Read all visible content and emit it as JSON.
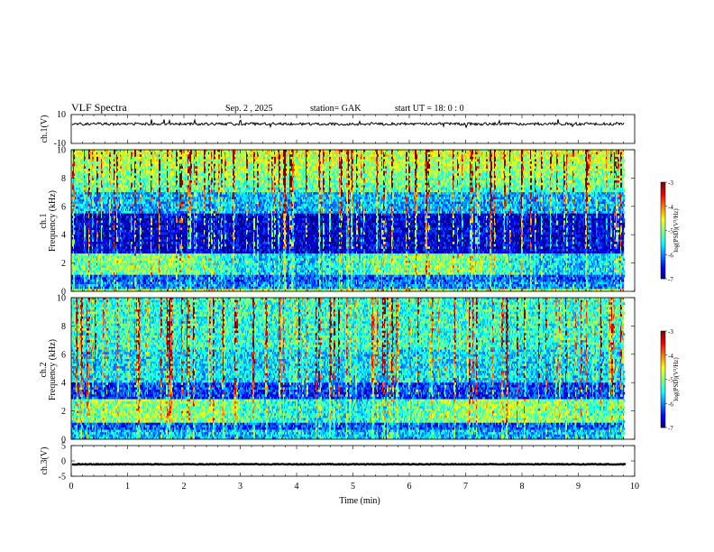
{
  "header": {
    "title": "VLF Spectra",
    "date": "Sep. 2 , 2025",
    "station": "station= GAK",
    "start": "start UT = 18: 0 : 0"
  },
  "chart_data": [
    {
      "type": "line",
      "panel": "ch1-waveform",
      "ylabel": "ch.1(V)",
      "ylim": [
        -10,
        10
      ],
      "ytick_labels": [
        "10",
        "-10"
      ],
      "xlim": [
        0,
        10
      ],
      "signal_level": 3.5
    },
    {
      "type": "heatmap",
      "panel": "ch1-spectrogram",
      "ylabel": "ch.1\nFrequency (kHz)",
      "ylabel_line1": "ch.1",
      "ylabel_line2": "Frequency (kHz)",
      "ylim": [
        0,
        10
      ],
      "ytick_labels": [
        "0",
        "2",
        "4",
        "6",
        "8",
        "10"
      ],
      "xlim": [
        0,
        9.8
      ],
      "colorbar": {
        "label": "log(PSD)(V²/Hz)",
        "range": [
          -7,
          -3
        ],
        "tick_labels": [
          "-3",
          "-4",
          "-5",
          "-6",
          "-7"
        ]
      }
    },
    {
      "type": "heatmap",
      "panel": "ch2-spectrogram",
      "ylabel": "ch.2\nFrequency (kHz)",
      "ylabel_line1": "ch.2",
      "ylabel_line2": "Frequency (kHz)",
      "ylim": [
        0,
        10
      ],
      "ytick_labels": [
        "0",
        "2",
        "4",
        "6",
        "8",
        "10"
      ],
      "xlim": [
        0,
        9.8
      ],
      "colorbar": {
        "label": "log(PSD)(V²/Hz)",
        "range": [
          -7,
          -3
        ],
        "tick_labels": [
          "-3",
          "-4",
          "-5",
          "-6",
          "-7"
        ]
      }
    },
    {
      "type": "line",
      "panel": "ch3-waveform",
      "ylabel": "ch.3(V)",
      "ylim": [
        -5,
        5
      ],
      "ytick_labels": [
        "5",
        "0",
        "-5"
      ],
      "xlim": [
        0,
        10
      ],
      "signal_level": -1.1,
      "xlabel": "Time (min)",
      "xtick_labels": [
        "0",
        "1",
        "2",
        "3",
        "4",
        "5",
        "6",
        "7",
        "8",
        "9",
        "10"
      ]
    }
  ]
}
